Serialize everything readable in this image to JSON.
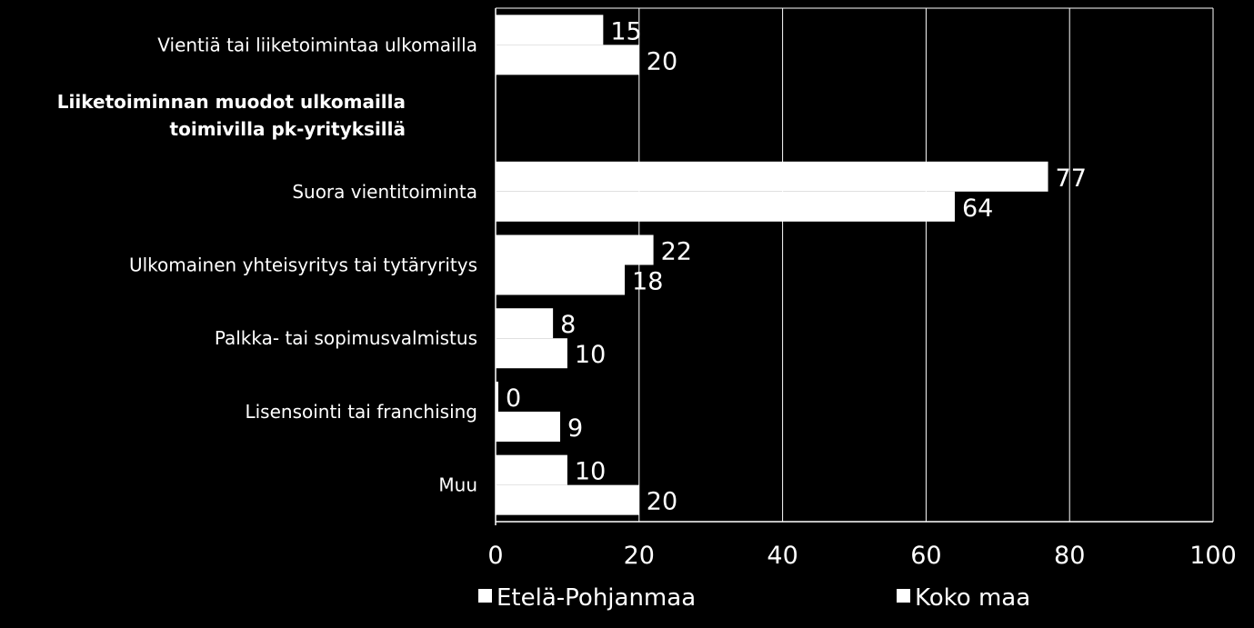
{
  "chart_data": {
    "type": "bar",
    "orientation": "horizontal",
    "categories": [
      "Vientiä tai liiketoimintaa ulkomailla",
      "Liiketoiminnan muodot ulkomailla toimivilla pk-yrityksillä",
      "Suora vientitoiminta",
      "Ulkomainen yhteisyritys tai tytäryritys",
      "Palkka- tai sopimusvalmistus",
      "Lisensointi tai franchising",
      "Muu"
    ],
    "heading_category": {
      "lines": [
        "Liiketoiminnan muodot ulkomailla",
        "toimivilla pk-yrityksillä"
      ]
    },
    "series": [
      {
        "name": "Etelä-Pohjanmaa",
        "values": [
          15,
          null,
          77,
          22,
          8,
          0,
          10
        ]
      },
      {
        "name": "Koko maa",
        "values": [
          20,
          null,
          64,
          18,
          10,
          9,
          20
        ]
      }
    ],
    "xlim": [
      0,
      100
    ],
    "xticks": [
      0,
      20,
      40,
      60,
      80,
      100
    ],
    "grid": true,
    "legend_position": "bottom",
    "colors": {
      "background": "#000000",
      "bars": "#ffffff",
      "text": "#ffffff",
      "grid": "#ffffff"
    }
  }
}
